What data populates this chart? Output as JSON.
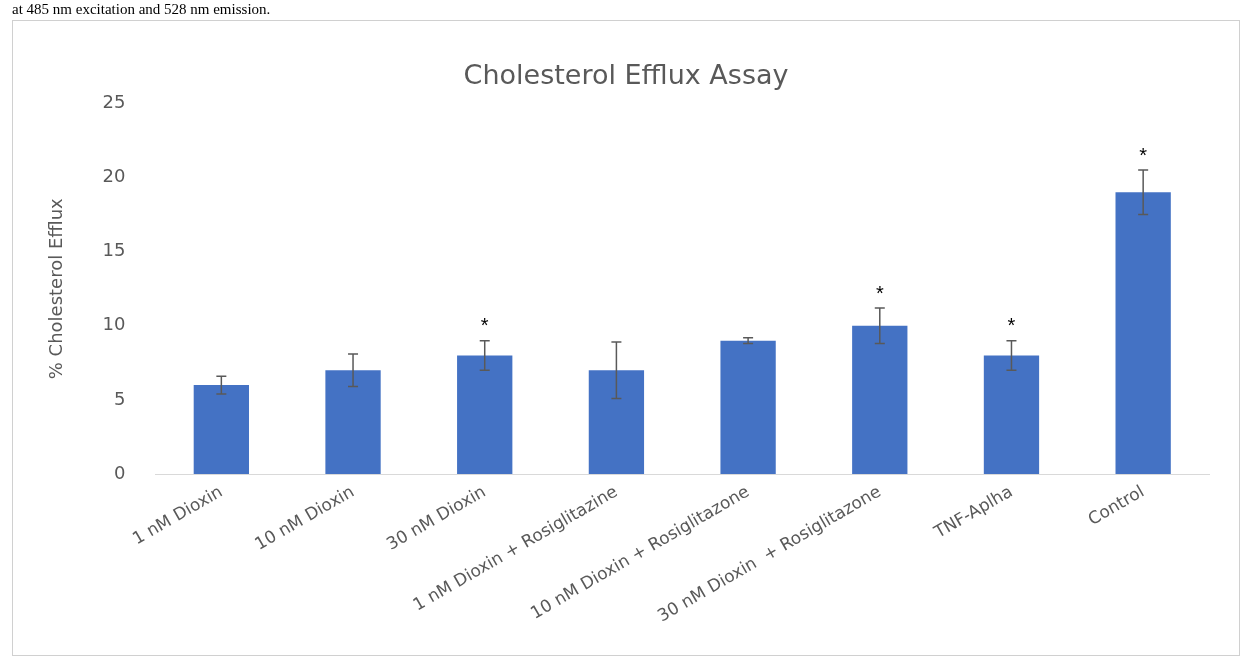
{
  "chart_data": {
    "type": "bar",
    "title": "Cholesterol Efflux Assay",
    "ylabel": "% Cholesterol Efflux",
    "categories": [
      "1 nM Dioxin",
      "10 nM Dioxin",
      "30 nM Dioxin",
      "1 nM Dioxin + Rosiglitazine",
      "10 nM Dioxin + Rosiglitazone",
      "30 nM Dioxin  + Rosiglitazone",
      "TNF-Aplha",
      "Control"
    ],
    "values": [
      6,
      7,
      8,
      7,
      9,
      10,
      8,
      19
    ],
    "errors": [
      0.6,
      1.1,
      1,
      1.9,
      0.2,
      1.2,
      1,
      1.5
    ],
    "color": "#4472c4",
    "ylim": [
      0,
      25
    ],
    "yticks": [
      0,
      5,
      10,
      15,
      20,
      25
    ],
    "grid": false,
    "legend": false,
    "annotations": [
      "at 485 nm excitation and 528 nm emission.",
      {
        "text": "*",
        "x": "30 nM Dioxin",
        "y": 8
      },
      {
        "text": "*",
        "x": "30 nM Dioxin  + Rosiglitazone",
        "y": 10
      },
      {
        "text": "*",
        "x": "TNF-Aplha",
        "y": 8
      },
      {
        "text": "*",
        "x": "Control",
        "y": 19
      }
    ]
  }
}
